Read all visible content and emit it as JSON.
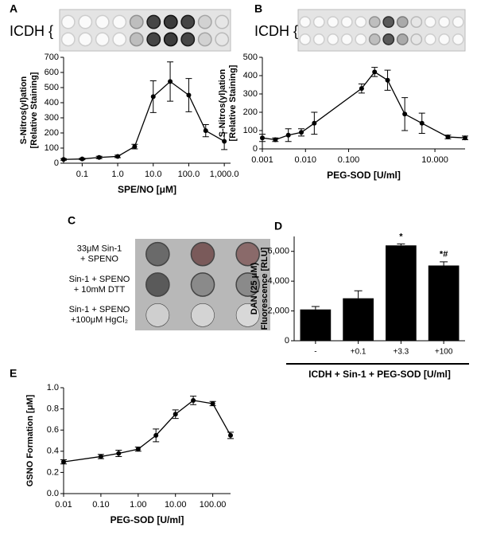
{
  "chart_data": [
    {
      "type": "line",
      "panel_label": "A",
      "blot_label": "ICDH {",
      "ylabel": [
        "S-Nitros(yl)ation",
        "[Relative Staining]"
      ],
      "xlabel": "SPE/NO [μM]",
      "log_x": true,
      "xlim": [
        0.03,
        1500
      ],
      "xticks": [
        0.1,
        {
          "value": 1,
          "label": "1.0"
        },
        {
          "value": 10,
          "label": "10.0"
        },
        {
          "value": 100,
          "label": "100.0"
        },
        {
          "value": 1000,
          "label": "1,000.0"
        }
      ],
      "ylim": [
        0,
        700
      ],
      "yticks": [
        0,
        100,
        200,
        300,
        400,
        500,
        600,
        700
      ],
      "x": [
        0.03,
        0.1,
        0.3,
        1,
        3,
        10,
        30,
        100,
        300,
        1000
      ],
      "values": [
        25,
        28,
        38,
        45,
        110,
        440,
        540,
        450,
        215,
        145
      ],
      "errors": [
        5,
        5,
        8,
        8,
        15,
        105,
        130,
        110,
        40,
        55
      ],
      "color": "#000000"
    },
    {
      "type": "line",
      "panel_label": "B",
      "blot_label": "ICDH {",
      "ylabel": [
        "S-Nitros(yl)ation",
        "[Relative Staining]"
      ],
      "xlabel": "PEG-SOD [U/ml]",
      "log_x": true,
      "xlim": [
        0.001,
        50
      ],
      "xticks": [
        0.001,
        {
          "value": 0.01,
          "label": "0.010"
        },
        {
          "value": 0.1,
          "label": "0.100"
        },
        {
          "value": 10,
          "label": "10.000"
        }
      ],
      "ylim": [
        0,
        500
      ],
      "yticks": [
        0,
        100,
        200,
        300,
        400,
        500
      ],
      "x": [
        0.001,
        0.002,
        0.004,
        0.008,
        0.016,
        0.2,
        0.4,
        0.8,
        2,
        5,
        20,
        50
      ],
      "values": [
        60,
        50,
        75,
        90,
        140,
        330,
        420,
        375,
        190,
        140,
        65,
        60
      ],
      "errors": [
        20,
        10,
        35,
        20,
        60,
        25,
        25,
        55,
        90,
        55,
        10,
        10
      ],
      "color": "#000000"
    },
    {
      "type": "dot-blot",
      "panel_label": "C",
      "row_labels": [
        [
          "33μM Sin-1",
          "+ SPENO"
        ],
        [
          "Sin-1 + SPENO",
          "+ 10mM DTT"
        ],
        [
          "Sin-1 + SPENO",
          "+100μM HgCl₂"
        ]
      ]
    },
    {
      "type": "bar",
      "panel_label": "D",
      "ylabel": [
        "DAN (25 μM)",
        "Fluorescence [RLU]"
      ],
      "xlabel": "ICDH + Sin-1 + PEG-SOD [U/ml]",
      "categories": [
        "-",
        "+0.1",
        "+3.3",
        "+100"
      ],
      "values": [
        2100,
        2850,
        6400,
        5050
      ],
      "errors": [
        200,
        500,
        100,
        250
      ],
      "bar_annotations": [
        null,
        null,
        "*",
        "*#"
      ],
      "ylim": [
        0,
        7000
      ],
      "yticks": [
        0,
        {
          "value": 2000,
          "label": "2,000"
        },
        {
          "value": 4000,
          "label": "4,000"
        },
        {
          "value": 6000,
          "label": "6,000"
        }
      ],
      "color": "#000000"
    },
    {
      "type": "line",
      "panel_label": "E",
      "ylabel": [
        "GSNO Formation [μM]"
      ],
      "xlabel": "PEG-SOD [U/ml]",
      "log_x": true,
      "xlim": [
        0.01,
        300
      ],
      "xticks": [
        0.01,
        {
          "value": 0.1,
          "label": "0.10"
        },
        {
          "value": 1,
          "label": "1.00"
        },
        {
          "value": 10,
          "label": "10.00"
        },
        {
          "value": 100,
          "label": "100.00"
        }
      ],
      "ylim": [
        0,
        1
      ],
      "yticks": [
        {
          "value": 0,
          "label": "0.0"
        },
        {
          "value": 0.2,
          "label": "0.2"
        },
        {
          "value": 0.4,
          "label": "0.4"
        },
        {
          "value": 0.6,
          "label": "0.6"
        },
        {
          "value": 0.8,
          "label": "0.8"
        },
        {
          "value": 1,
          "label": "1.0"
        }
      ],
      "x": [
        0.01,
        0.1,
        0.3,
        1,
        3,
        10,
        30,
        100,
        300
      ],
      "values": [
        0.3,
        0.35,
        0.38,
        0.42,
        0.55,
        0.75,
        0.88,
        0.85,
        0.55
      ],
      "errors": [
        0.02,
        0.02,
        0.03,
        0.02,
        0.06,
        0.04,
        0.04,
        0.02,
        0.03
      ],
      "color": "#000000"
    }
  ]
}
